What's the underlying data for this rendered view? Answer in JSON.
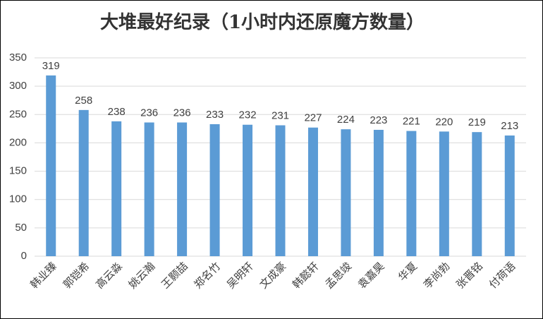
{
  "chart_data": {
    "type": "bar",
    "title": "大堆最好纪录（1小时内还原魔方数量）",
    "categories": [
      "韩业臻",
      "郭铠希",
      "高云淼",
      "姚云瀚",
      "王颢喆",
      "郑名竹",
      "吴明轩",
      "文成豪",
      "韩懿轩",
      "孟思竣",
      "袁嘉昊",
      "华夏",
      "李尚勃",
      "张晋铭",
      "付荷语"
    ],
    "values": [
      319,
      258,
      238,
      236,
      236,
      233,
      232,
      231,
      227,
      224,
      223,
      221,
      220,
      219,
      213
    ],
    "color": "#5b9bd5",
    "ylim": [
      0,
      350
    ],
    "yticks": [
      0,
      50,
      100,
      150,
      200,
      250,
      300,
      350
    ],
    "grid": true
  }
}
